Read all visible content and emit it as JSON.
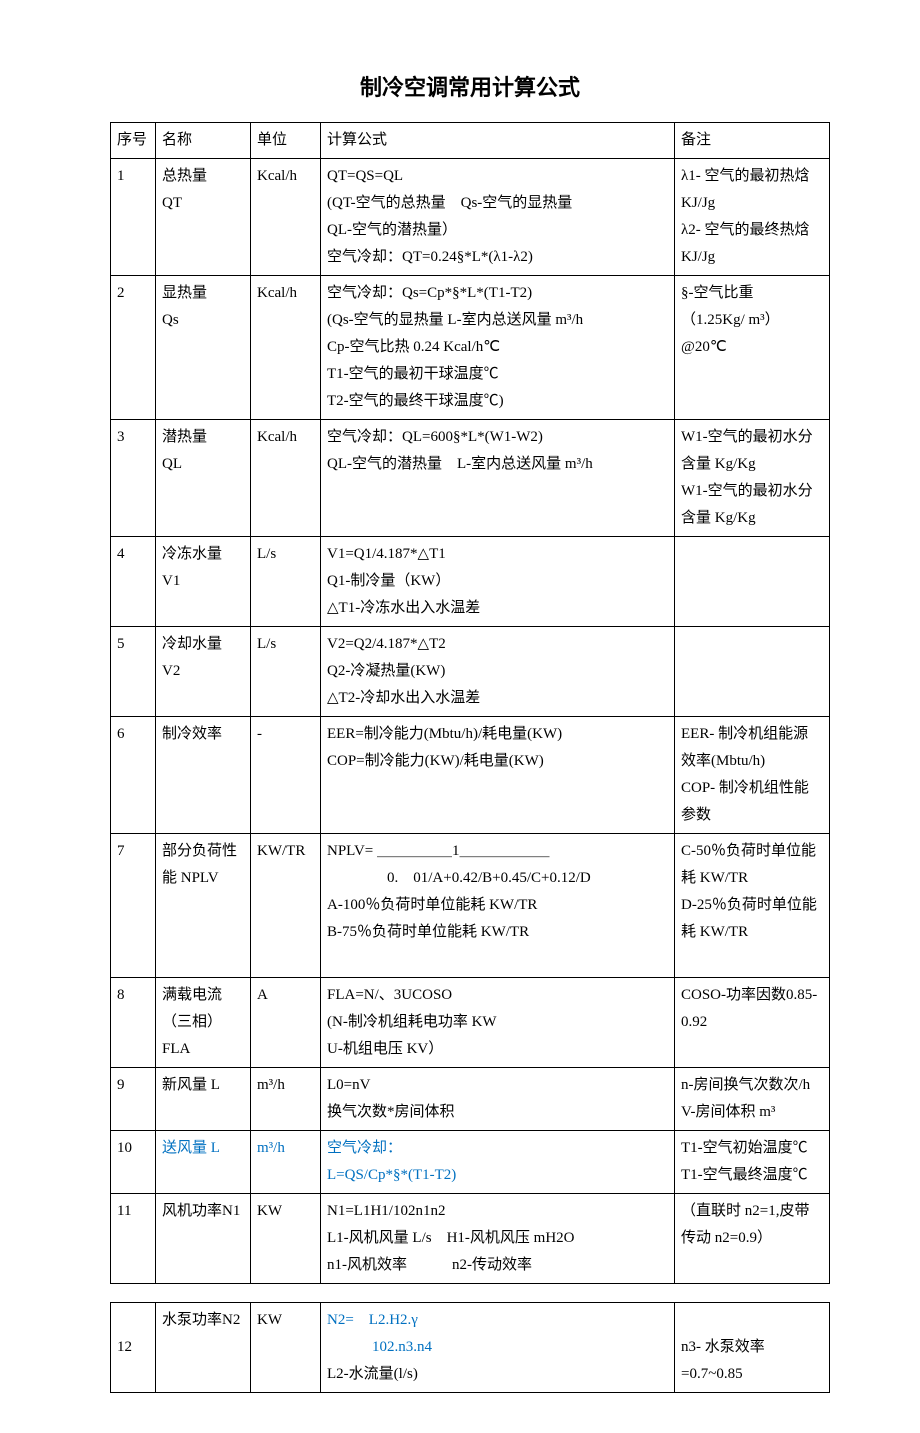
{
  "title": "制冷空调常用计算公式",
  "headers": {
    "num": "序号",
    "name": "名称",
    "unit": "单位",
    "formula": "计算公式",
    "note": "备注"
  },
  "rows": [
    {
      "num": "1",
      "name": "总热量\nQT",
      "unit": "Kcal/h",
      "formula": "QT=QS=QL\n(QT-空气的总热量　Qs-空气的显热量\nQL-空气的潜热量）\n空气冷却：QT=0.24§*L*(λ1-λ2)",
      "note": "λ1- 空气的最初热焓 KJ/Jg\nλ2- 空气的最终热焓 KJ/Jg"
    },
    {
      "num": "2",
      "name": "显热量\nQs",
      "unit": "Kcal/h",
      "formula": "空气冷却：Qs=Cp*§*L*(T1-T2)\n(Qs-空气的显热量  L-室内总送风量 m³/h\nCp-空气比热 0.24 Kcal/h℃\nT1-空气的最初干球温度℃\nT2-空气的最终干球温度℃)",
      "note": "§-空气比重\n（1.25Kg/ m³）\n@20℃"
    },
    {
      "num": "3",
      "name": "潜热量\nQL",
      "unit": "Kcal/h",
      "formula": "空气冷却：QL=600§*L*(W1-W2)\nQL-空气的潜热量　L-室内总送风量 m³/h",
      "note": "W1-空气的最初水分含量 Kg/Kg\nW1-空气的最初水分含量 Kg/Kg"
    },
    {
      "num": "4",
      "name": "冷冻水量\nV1",
      "unit": "L/s",
      "formula": "V1=Q1/4.187*△T1\nQ1-制冷量（KW）\n△T1-冷冻水出入水温差",
      "note": ""
    },
    {
      "num": "5",
      "name": "冷却水量\nV2",
      "unit": "L/s",
      "formula": "V2=Q2/4.187*△T2\nQ2-冷凝热量(KW)\n△T2-冷却水出入水温差",
      "note": ""
    },
    {
      "num": "6",
      "name": "制冷效率",
      "unit": "-",
      "formula": "EER=制冷能力(Mbtu/h)/耗电量(KW)\nCOP=制冷能力(KW)/耗电量(KW)",
      "note": "EER- 制冷机组能源效率(Mbtu/h)\nCOP- 制冷机组性能参数"
    },
    {
      "num": "7",
      "name": "部分负荷性能 NPLV",
      "unit": "KW/TR",
      "formula": "NPLV= ＿＿＿＿＿1＿＿＿＿＿＿\n　　　　0.　01/A+0.42/B+0.45/C+0.12/D\nA-100％负荷时单位能耗 KW/TR\nB-75％负荷时单位能耗 KW/TR\n　",
      "note": "C-50％负荷时单位能耗 KW/TR\nD-25％负荷时单位能耗 KW/TR"
    },
    {
      "num": "8",
      "name": "满载电流（三相）FLA",
      "unit": "A",
      "formula": "FLA=N/、3UCOSO\n(N-制冷机组耗电功率 KW\nU-机组电压 KV）",
      "note": "COSO-功率因数0.85-0.92"
    },
    {
      "num": "9",
      "name": "新风量 L",
      "unit": "m³/h",
      "formula": "L0=nV\n换气次数*房间体积",
      "note": "n-房间换气次数次/h\nV-房间体积 m³"
    },
    {
      "num": "10",
      "name": "送风量 L",
      "unit": "m³/h",
      "formula": "空气冷却：\nL=QS/Cp*§*(T1-T2)",
      "note": "T1-空气初始温度℃\nT1-空气最终温度℃",
      "blue": true
    },
    {
      "num": "11",
      "name": "风机功率N1",
      "unit": "KW",
      "formula": "N1=L1H1/102n1n2\nL1-风机风量 L/s　H1-风机风压 mH2O\nn1-风机效率　　　n2-传动效率",
      "note": "（直联时 n2=1,皮带传动 n2=0.9）"
    }
  ],
  "split_row": {
    "num": "12",
    "name": "水泵功率N2",
    "unit": "KW",
    "formula_blue": "N2=　L2.H2.γ\n　　　102.n3.n4",
    "formula_black": "L2-水流量(l/s)",
    "note": "\nn3- 水泵效率=0.7~0.85"
  }
}
